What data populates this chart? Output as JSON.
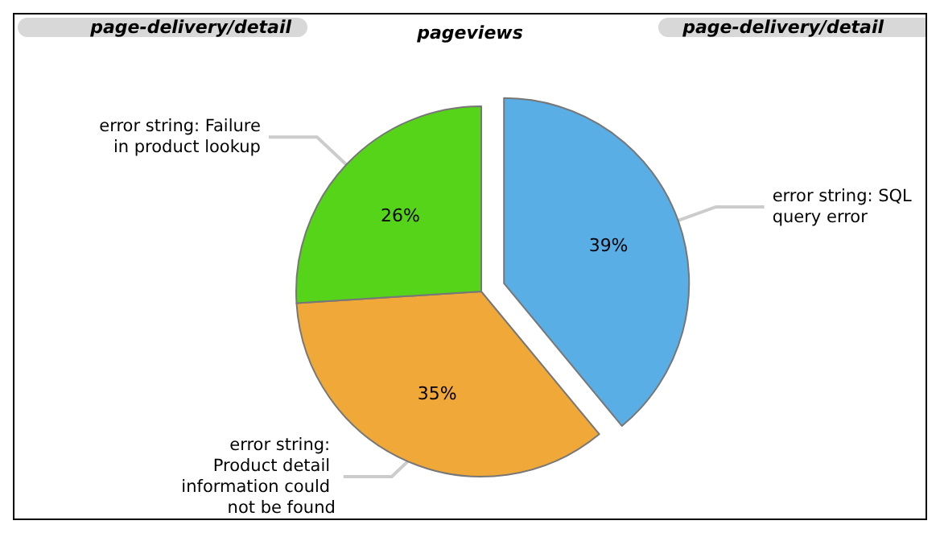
{
  "chart_data": {
    "type": "pie",
    "title": "pageviews",
    "annotations": [
      "page-delivery/detail",
      "page-delivery/detail"
    ],
    "categories": [
      "error string: SQL query error",
      "error string: Product detail information could not be found",
      "error string: Failure in product lookup"
    ],
    "values": [
      39,
      35,
      26
    ],
    "value_labels": [
      "39%",
      "35%",
      "26%"
    ],
    "colors": [
      "#5aaee6",
      "#f0a838",
      "#56d41a"
    ],
    "legend": false
  }
}
